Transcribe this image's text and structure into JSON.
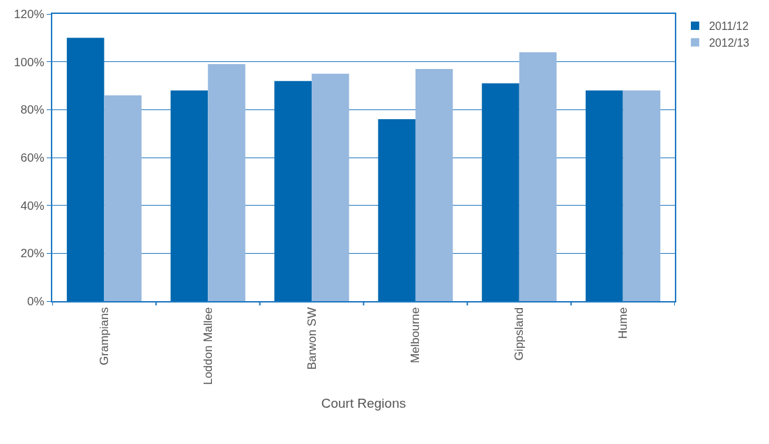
{
  "chart_data": {
    "type": "bar",
    "xlabel": "Court Regions",
    "categories": [
      "Grampians",
      "Loddon Mallee",
      "Barwon SW",
      "Melbourne",
      "Gippsland",
      "Hume"
    ],
    "series": [
      {
        "name": "2011/12",
        "color": "#0068b0",
        "values": [
          110,
          88,
          92,
          76,
          91,
          88
        ]
      },
      {
        "name": "2012/13",
        "color": "#97b8df",
        "values": [
          86,
          99,
          95,
          97,
          104,
          88
        ]
      }
    ],
    "ylim": [
      0,
      120
    ],
    "yticks": [
      {
        "value": 0,
        "label": "0%"
      },
      {
        "value": 20,
        "label": "20%"
      },
      {
        "value": 40,
        "label": "40%"
      },
      {
        "value": 60,
        "label": "60%"
      },
      {
        "value": 80,
        "label": "80%"
      },
      {
        "value": 100,
        "label": "100%"
      },
      {
        "value": 120,
        "label": "120%"
      }
    ],
    "grid": "y",
    "legend": "top right"
  }
}
